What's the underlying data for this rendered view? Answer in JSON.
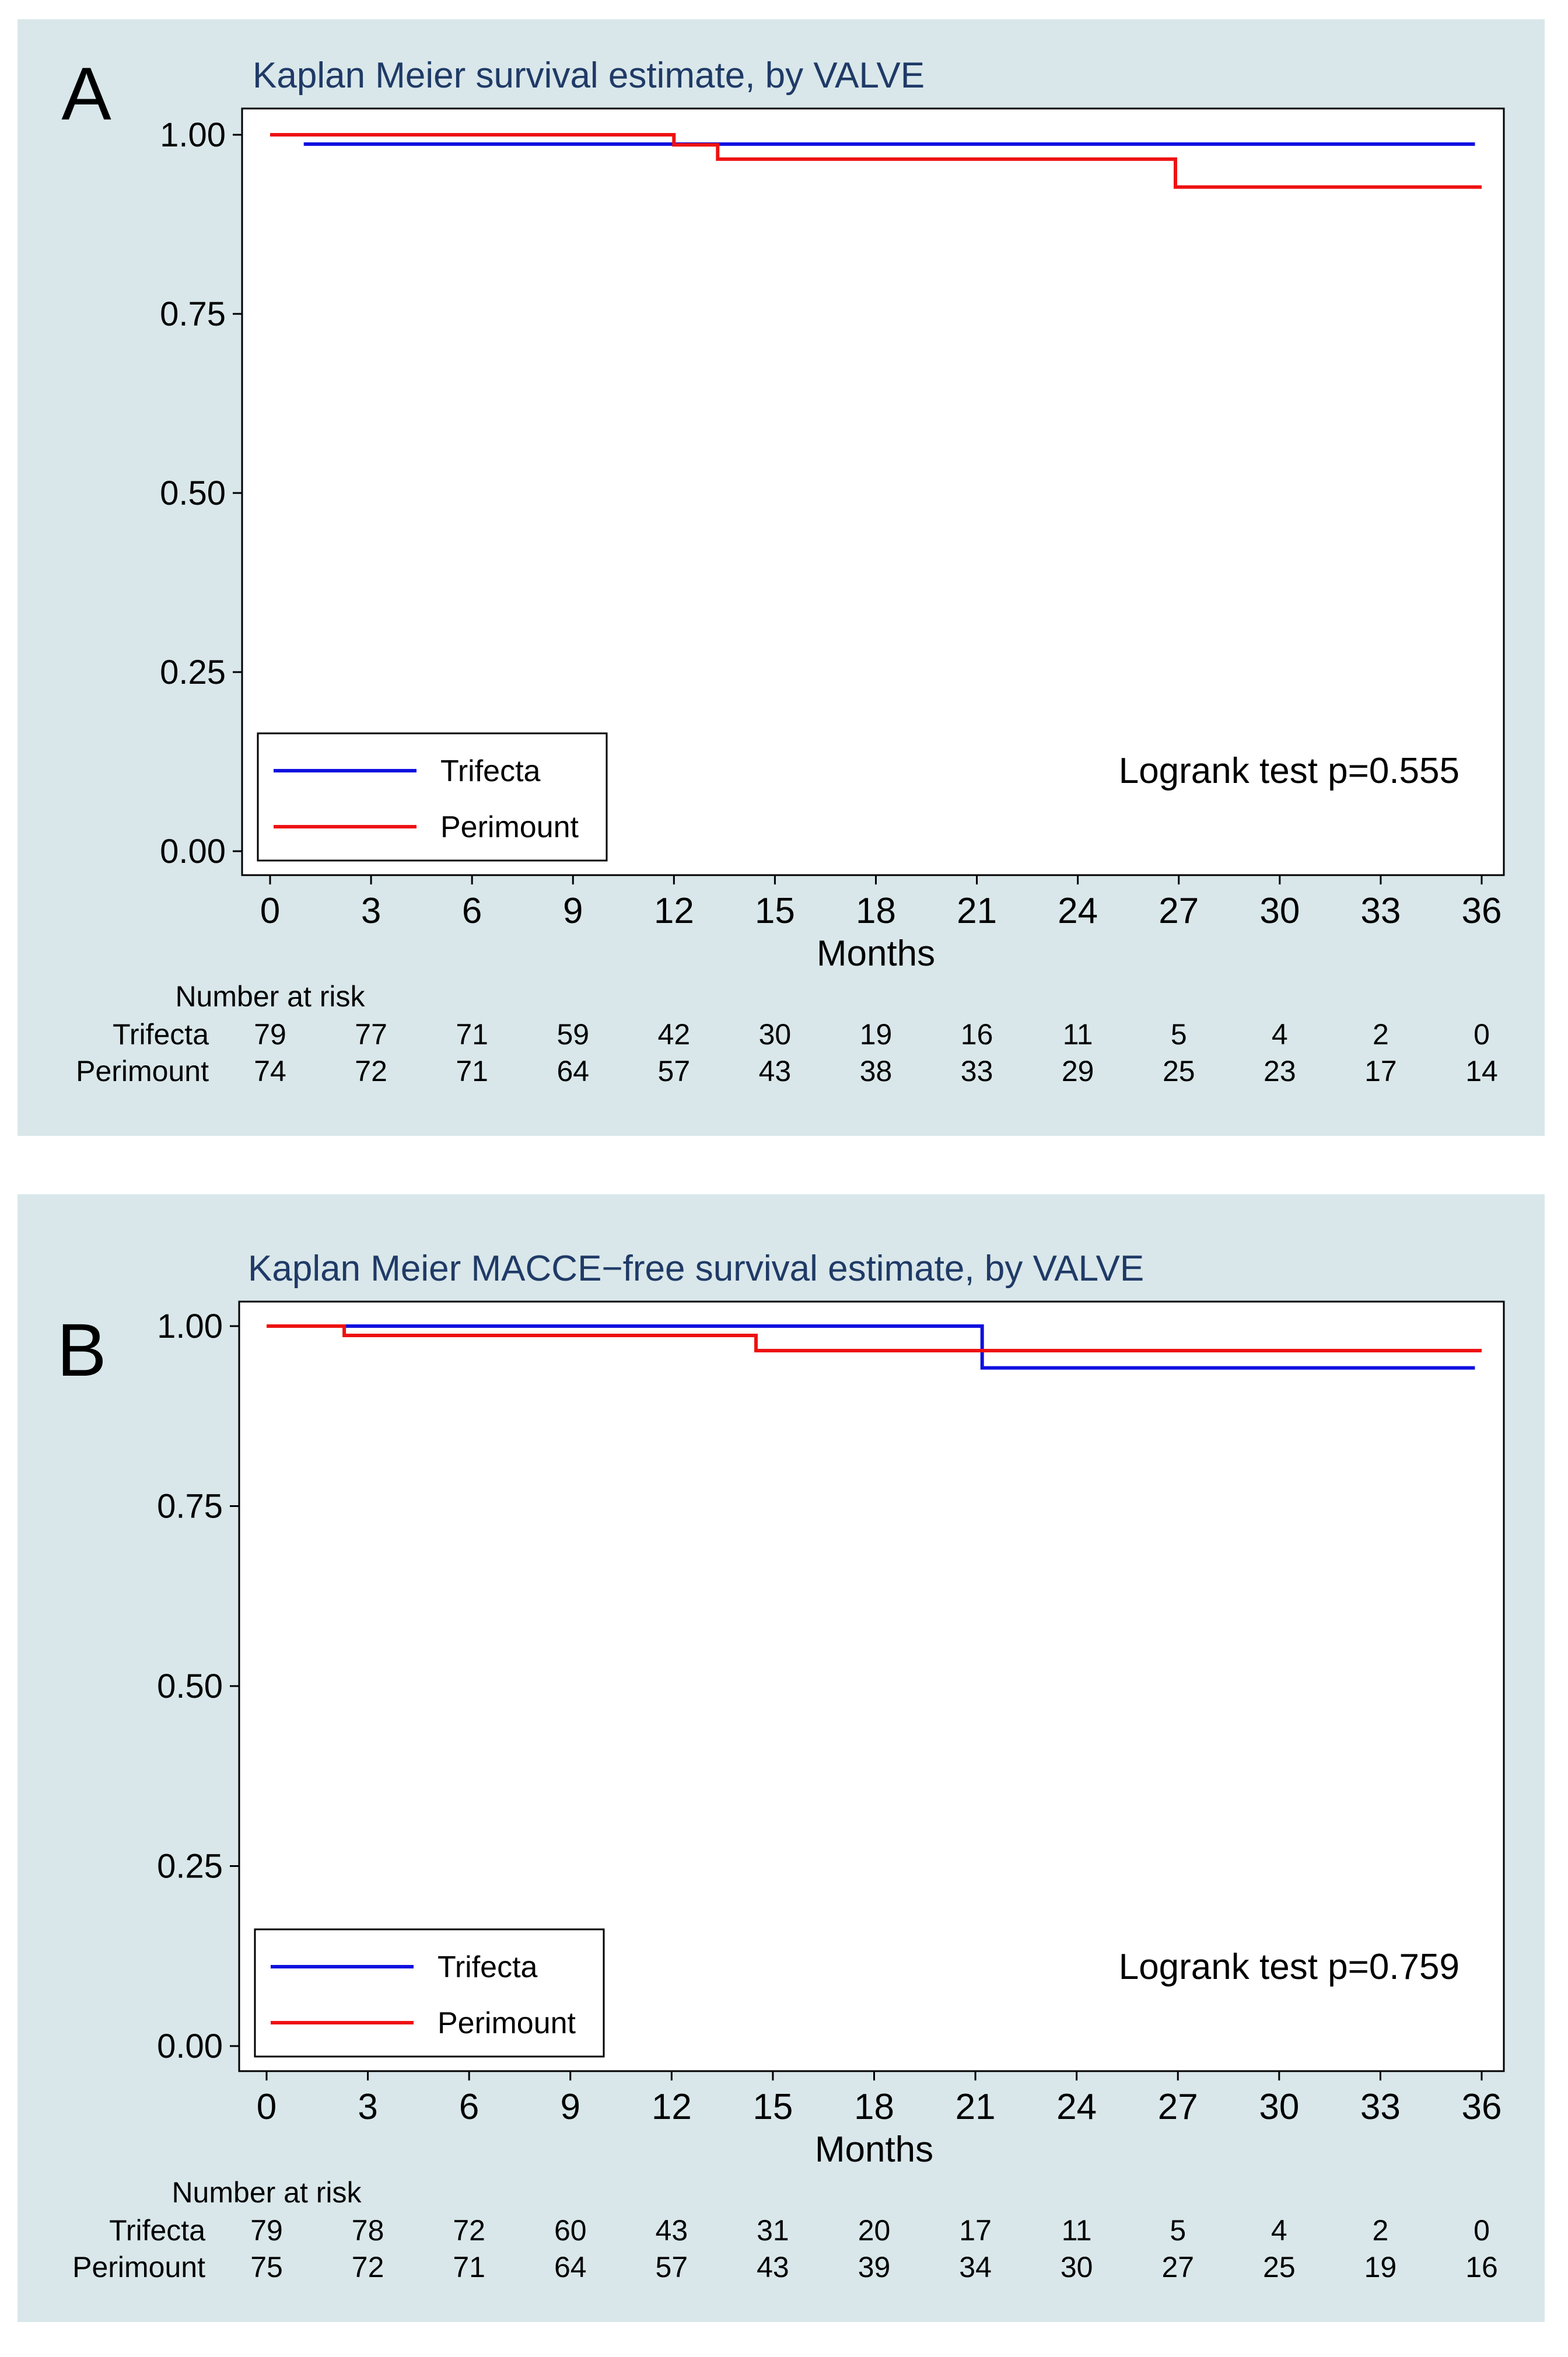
{
  "panels": [
    {
      "letter": "A"
    },
    {
      "letter": "B"
    }
  ],
  "chart_data": [
    {
      "type": "line",
      "subtype": "kaplan-meier step",
      "panel": "A",
      "title": "Kaplan Meier survival estimate, by VALVE",
      "xlabel": "Months",
      "ylabel": "",
      "xlim": [
        0,
        36
      ],
      "ylim": [
        0,
        1
      ],
      "xticks": [
        0,
        3,
        6,
        9,
        12,
        15,
        18,
        21,
        24,
        27,
        30,
        33,
        36
      ],
      "xtick_labels": [
        "0",
        "3",
        "6",
        "9",
        "12",
        "15",
        "18",
        "21",
        "24",
        "27",
        "30",
        "33",
        "36"
      ],
      "yticks": [
        0,
        0.25,
        0.5,
        0.75,
        1
      ],
      "ytick_labels": [
        "0.00",
        "0.25",
        "0.50",
        "0.75",
        "1.00"
      ],
      "grid": false,
      "legend_position": "bottom-left",
      "annotation": "Logrank test p=0.555",
      "series": [
        {
          "name": "Trifecta",
          "color": "#1010e0",
          "start": 1,
          "end": 35.8,
          "points": [
            [
              1,
              0.987
            ]
          ]
        },
        {
          "name": "Perimount",
          "color": "#ee1111",
          "start": 0,
          "end": 36,
          "points": [
            [
              0,
              1.0
            ],
            [
              12,
              0.986
            ],
            [
              13.3,
              0.966
            ],
            [
              26.9,
              0.927
            ]
          ]
        }
      ],
      "risk_table": {
        "title": "Number at risk",
        "times": [
          0,
          3,
          6,
          9,
          12,
          15,
          18,
          21,
          24,
          27,
          30,
          33,
          36
        ],
        "rows": [
          {
            "label": "Trifecta",
            "values": [
              "79",
              "77",
              "71",
              "59",
              "42",
              "30",
              "19",
              "16",
              "11",
              "5",
              "4",
              "2",
              "0"
            ]
          },
          {
            "label": "Perimount",
            "values": [
              "74",
              "72",
              "71",
              "64",
              "57",
              "43",
              "38",
              "33",
              "29",
              "25",
              "23",
              "17",
              "14"
            ]
          }
        ]
      }
    },
    {
      "type": "line",
      "subtype": "kaplan-meier step",
      "panel": "B",
      "title": "Kaplan Meier MACCE−free survival estimate, by VALVE",
      "xlabel": "Months",
      "ylabel": "",
      "xlim": [
        0,
        36
      ],
      "ylim": [
        0,
        1
      ],
      "xticks": [
        0,
        3,
        6,
        9,
        12,
        15,
        18,
        21,
        24,
        27,
        30,
        33,
        36
      ],
      "xtick_labels": [
        "0",
        "3",
        "6",
        "9",
        "12",
        "15",
        "18",
        "21",
        "24",
        "27",
        "30",
        "33",
        "36"
      ],
      "yticks": [
        0,
        0.25,
        0.5,
        0.75,
        1
      ],
      "ytick_labels": [
        "0.00",
        "0.25",
        "0.50",
        "0.75",
        "1.00"
      ],
      "grid": false,
      "legend_position": "bottom-left",
      "annotation": "Logrank test p=0.759",
      "series": [
        {
          "name": "Trifecta",
          "color": "#1010e0",
          "start": 2.3,
          "end": 35.8,
          "points": [
            [
              2.3,
              1.0
            ],
            [
              21.2,
              0.942
            ]
          ]
        },
        {
          "name": "Perimount",
          "color": "#ee1111",
          "start": 0,
          "end": 36,
          "points": [
            [
              0,
              1.0
            ],
            [
              2.3,
              0.987
            ],
            [
              14.5,
              0.966
            ]
          ]
        }
      ],
      "risk_table": {
        "title": "Number at risk",
        "times": [
          0,
          3,
          6,
          9,
          12,
          15,
          18,
          21,
          24,
          27,
          30,
          33,
          36
        ],
        "rows": [
          {
            "label": "Trifecta",
            "values": [
              "79",
              "78",
              "72",
              "60",
              "43",
              "31",
              "20",
              "17",
              "11",
              "5",
              "4",
              "2",
              "0"
            ]
          },
          {
            "label": "Perimount",
            "values": [
              "75",
              "72",
              "71",
              "64",
              "57",
              "43",
              "39",
              "34",
              "30",
              "27",
              "25",
              "19",
              "16"
            ]
          }
        ]
      }
    }
  ]
}
